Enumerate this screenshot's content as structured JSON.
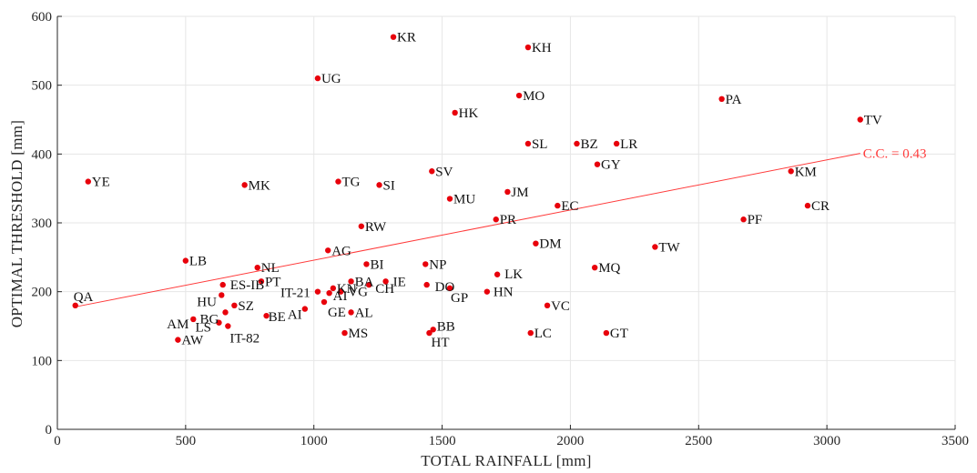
{
  "chart_data": {
    "type": "scatter",
    "xlabel": "TOTAL RAINFALL [mm]",
    "ylabel": "OPTIMAL THRESHOLD [mm]",
    "xlim": [
      0,
      3500
    ],
    "ylim": [
      0,
      600
    ],
    "xticks": [
      0,
      500,
      1000,
      1500,
      2000,
      2500,
      3000,
      3500
    ],
    "yticks": [
      0,
      100,
      200,
      300,
      400,
      500,
      600
    ],
    "grid": true,
    "colors": {
      "points": "#e8000b",
      "trend": "#ff3b3b",
      "axis": "#262626",
      "grid": "#e6e6e6"
    },
    "trend": {
      "x": [
        70,
        3130
      ],
      "y": [
        178,
        401
      ],
      "label": "C.C. = 0.43"
    },
    "points": [
      {
        "label": "KR",
        "x": 1310,
        "y": 570
      },
      {
        "label": "KH",
        "x": 1835,
        "y": 555
      },
      {
        "label": "UG",
        "x": 1015,
        "y": 510
      },
      {
        "label": "MO",
        "x": 1800,
        "y": 485
      },
      {
        "label": "PA",
        "x": 2590,
        "y": 480
      },
      {
        "label": "HK",
        "x": 1550,
        "y": 460
      },
      {
        "label": "TV",
        "x": 3130,
        "y": 450
      },
      {
        "label": "SL",
        "x": 1835,
        "y": 415
      },
      {
        "label": "BZ",
        "x": 2025,
        "y": 415
      },
      {
        "label": "LR",
        "x": 2180,
        "y": 415
      },
      {
        "label": "GY",
        "x": 2105,
        "y": 385
      },
      {
        "label": "SV",
        "x": 1460,
        "y": 375
      },
      {
        "label": "KM",
        "x": 2860,
        "y": 375
      },
      {
        "label": "YE",
        "x": 120,
        "y": 360
      },
      {
        "label": "TG",
        "x": 1095,
        "y": 360
      },
      {
        "label": "MK",
        "x": 730,
        "y": 355
      },
      {
        "label": "SI",
        "x": 1255,
        "y": 355
      },
      {
        "label": "JM",
        "x": 1755,
        "y": 345
      },
      {
        "label": "MU",
        "x": 1530,
        "y": 335
      },
      {
        "label": "EC",
        "x": 1950,
        "y": 325
      },
      {
        "label": "CR",
        "x": 2925,
        "y": 325
      },
      {
        "label": "PR",
        "x": 1710,
        "y": 305
      },
      {
        "label": "PF",
        "x": 2675,
        "y": 305
      },
      {
        "label": "RW",
        "x": 1185,
        "y": 295
      },
      {
        "label": "DM",
        "x": 1865,
        "y": 270
      },
      {
        "label": "TW",
        "x": 2330,
        "y": 265
      },
      {
        "label": "AG",
        "x": 1055,
        "y": 260
      },
      {
        "label": "LB",
        "x": 500,
        "y": 245
      },
      {
        "label": "NP",
        "x": 1435,
        "y": 240
      },
      {
        "label": "BI",
        "x": 1205,
        "y": 240
      },
      {
        "label": "NL",
        "x": 780,
        "y": 235
      },
      {
        "label": "MQ",
        "x": 2095,
        "y": 235
      },
      {
        "label": "LK",
        "x": 1715,
        "y": 225
      },
      {
        "label": "PT",
        "x": 795,
        "y": 215
      },
      {
        "label": "BA",
        "x": 1145,
        "y": 215
      },
      {
        "label": "IE",
        "x": 1280,
        "y": 215
      },
      {
        "label": "ES-IB",
        "x": 645,
        "y": 210
      },
      {
        "label": "DO",
        "x": 1440,
        "y": 210
      },
      {
        "label": "GP",
        "x": 1530,
        "y": 205
      },
      {
        "label": "KN",
        "x": 1075,
        "y": 205
      },
      {
        "label": "CH",
        "x": 1215,
        "y": 210
      },
      {
        "label": "VG",
        "x": 1105,
        "y": 200
      },
      {
        "label": "HN",
        "x": 1675,
        "y": 200
      },
      {
        "label": "IT-21",
        "x": 1015,
        "y": 200
      },
      {
        "label": "AI",
        "x": 1060,
        "y": 198
      },
      {
        "label": "HU",
        "x": 640,
        "y": 195
      },
      {
        "label": "GE",
        "x": 1040,
        "y": 185
      },
      {
        "label": "QA",
        "x": 70,
        "y": 180
      },
      {
        "label": "VC",
        "x": 1910,
        "y": 180
      },
      {
        "label": "SZ",
        "x": 690,
        "y": 180
      },
      {
        "label": "AI",
        "x": 965,
        "y": 175
      },
      {
        "label": "BG",
        "x": 655,
        "y": 170
      },
      {
        "label": "AL",
        "x": 1145,
        "y": 170
      },
      {
        "label": "BE",
        "x": 815,
        "y": 165
      },
      {
        "label": "AM",
        "x": 530,
        "y": 160
      },
      {
        "label": "LS",
        "x": 630,
        "y": 155
      },
      {
        "label": "IT-82",
        "x": 665,
        "y": 150
      },
      {
        "label": "BB",
        "x": 1465,
        "y": 145
      },
      {
        "label": "MS",
        "x": 1120,
        "y": 140
      },
      {
        "label": "HT",
        "x": 1450,
        "y": 140
      },
      {
        "label": "LC",
        "x": 1845,
        "y": 140
      },
      {
        "label": "GT",
        "x": 2140,
        "y": 140
      },
      {
        "label": "AW",
        "x": 470,
        "y": 130
      }
    ]
  }
}
